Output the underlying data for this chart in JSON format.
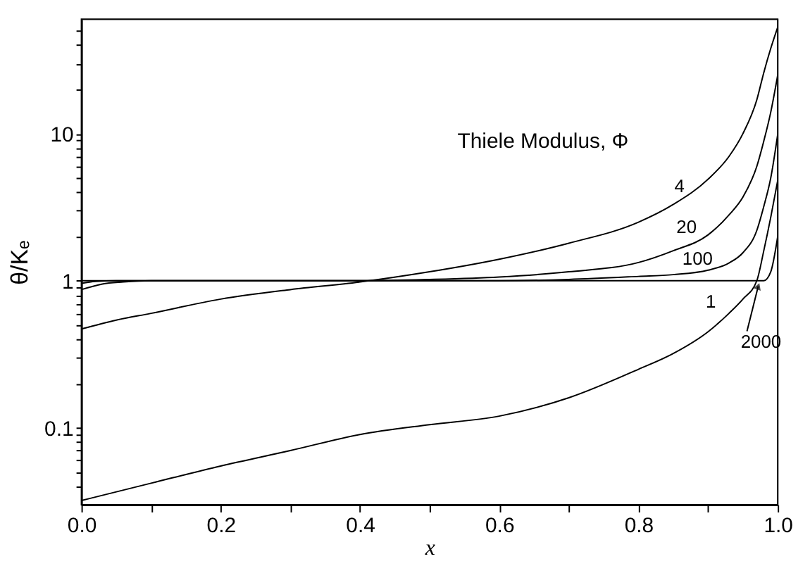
{
  "chart_data": {
    "type": "line",
    "xlabel": "x",
    "ylabel": "θ/Kₑ",
    "log": "y",
    "xlim": [
      0,
      1
    ],
    "ylim": [
      0.03,
      60
    ],
    "xticks": [
      {
        "value": 0,
        "label": "0.0"
      },
      {
        "value": 0.1,
        "label": null
      },
      0.2,
      {
        "value": 0.3,
        "label": null
      },
      0.4,
      {
        "value": 0.5,
        "label": null
      },
      0.6,
      {
        "value": 0.7,
        "label": null
      },
      0.8,
      {
        "value": 0.9,
        "label": null
      },
      {
        "value": 1,
        "label": "1.0"
      }
    ],
    "yticks": [
      {
        "value": 0.04,
        "label": null
      },
      {
        "value": 0.05,
        "label": null
      },
      {
        "value": 0.06,
        "label": null
      },
      {
        "value": 0.07,
        "label": null
      },
      {
        "value": 0.08,
        "label": null
      },
      {
        "value": 0.09,
        "label": null
      },
      0.1,
      {
        "value": 0.2,
        "label": null
      },
      {
        "value": 0.3,
        "label": null
      },
      {
        "value": 0.4,
        "label": null
      },
      {
        "value": 0.5,
        "label": null
      },
      {
        "value": 0.6,
        "label": null
      },
      {
        "value": 0.7,
        "label": null
      },
      {
        "value": 0.8,
        "label": null
      },
      {
        "value": 0.9,
        "label": null
      },
      1,
      {
        "value": 2,
        "label": null
      },
      {
        "value": 3,
        "label": null
      },
      {
        "value": 4,
        "label": null
      },
      {
        "value": 5,
        "label": null
      },
      {
        "value": 6,
        "label": null
      },
      {
        "value": 7,
        "label": null
      },
      {
        "value": 8,
        "label": null
      },
      {
        "value": 9,
        "label": null
      },
      10,
      {
        "value": 20,
        "label": null
      },
      {
        "value": 30,
        "label": null
      },
      {
        "value": 40,
        "label": null
      },
      {
        "value": 50,
        "label": null
      }
    ],
    "grid": false,
    "legend": false,
    "marker": "none",
    "line_style": "solid",
    "series": [
      {
        "color": "#000000",
        "x": [
          0,
          0.1,
          0.2,
          0.3,
          0.4,
          0.5,
          0.6,
          0.7,
          0.8,
          0.85,
          0.9,
          0.93,
          0.95,
          0.97,
          0.98,
          0.99,
          1.0
        ],
        "values": [
          0.032,
          0.042,
          0.055,
          0.07,
          0.09,
          0.105,
          0.12,
          0.16,
          0.25,
          0.32,
          0.45,
          0.6,
          0.75,
          1.0,
          1.6,
          2.7,
          4.8
        ]
      },
      {
        "color": "#000000",
        "x": [
          0,
          0.05,
          0.1,
          0.2,
          0.3,
          0.4,
          0.5,
          0.6,
          0.7,
          0.8,
          0.85,
          0.9,
          0.93,
          0.95,
          0.97,
          0.98,
          0.99,
          1.0
        ],
        "values": [
          0.47,
          0.54,
          0.6,
          0.75,
          0.87,
          0.98,
          1.15,
          1.4,
          1.8,
          2.5,
          3.3,
          4.9,
          7,
          10,
          17,
          26,
          38,
          53
        ]
      },
      {
        "color": "#000000",
        "x": [
          0,
          0.03,
          0.06,
          0.1,
          0.2,
          0.3,
          0.4,
          0.5,
          0.6,
          0.7,
          0.8,
          0.85,
          0.9,
          0.93,
          0.95,
          0.97,
          0.98,
          0.99,
          1.0
        ],
        "values": [
          0.87,
          0.95,
          0.98,
          1.0,
          1.0,
          1.0,
          1.0,
          1.02,
          1.06,
          1.15,
          1.33,
          1.6,
          2.05,
          2.8,
          3.7,
          6,
          8.9,
          14,
          25
        ]
      },
      {
        "color": "#000000",
        "x": [
          0,
          0.02,
          0.05,
          0.3,
          0.6,
          0.7,
          0.8,
          0.85,
          0.9,
          0.93,
          0.95,
          0.97,
          0.98,
          0.99,
          1.0
        ],
        "values": [
          0.96,
          0.99,
          1.0,
          1.0,
          1.0,
          1.02,
          1.07,
          1.1,
          1.18,
          1.32,
          1.55,
          2.2,
          3.2,
          5,
          9.9
        ]
      },
      {
        "color": "#000000",
        "x": [
          0,
          0.98,
          0.99,
          1.0
        ],
        "values": [
          1.0,
          1.0,
          1.15,
          2.0
        ]
      }
    ],
    "annotations": [
      "Thiele Modulus, Φ",
      {
        "text": "4",
        "x": 0.867,
        "y": 3.6
      },
      {
        "text": "20",
        "x": 0.873,
        "y": 1.7
      },
      {
        "text": "100",
        "x": 0.893,
        "y": 1.15
      },
      {
        "text": "1",
        "x": 0.92,
        "y": 0.55
      },
      {
        "text": "2000",
        "x": 0.972,
        "y": 1.0
      }
    ]
  }
}
